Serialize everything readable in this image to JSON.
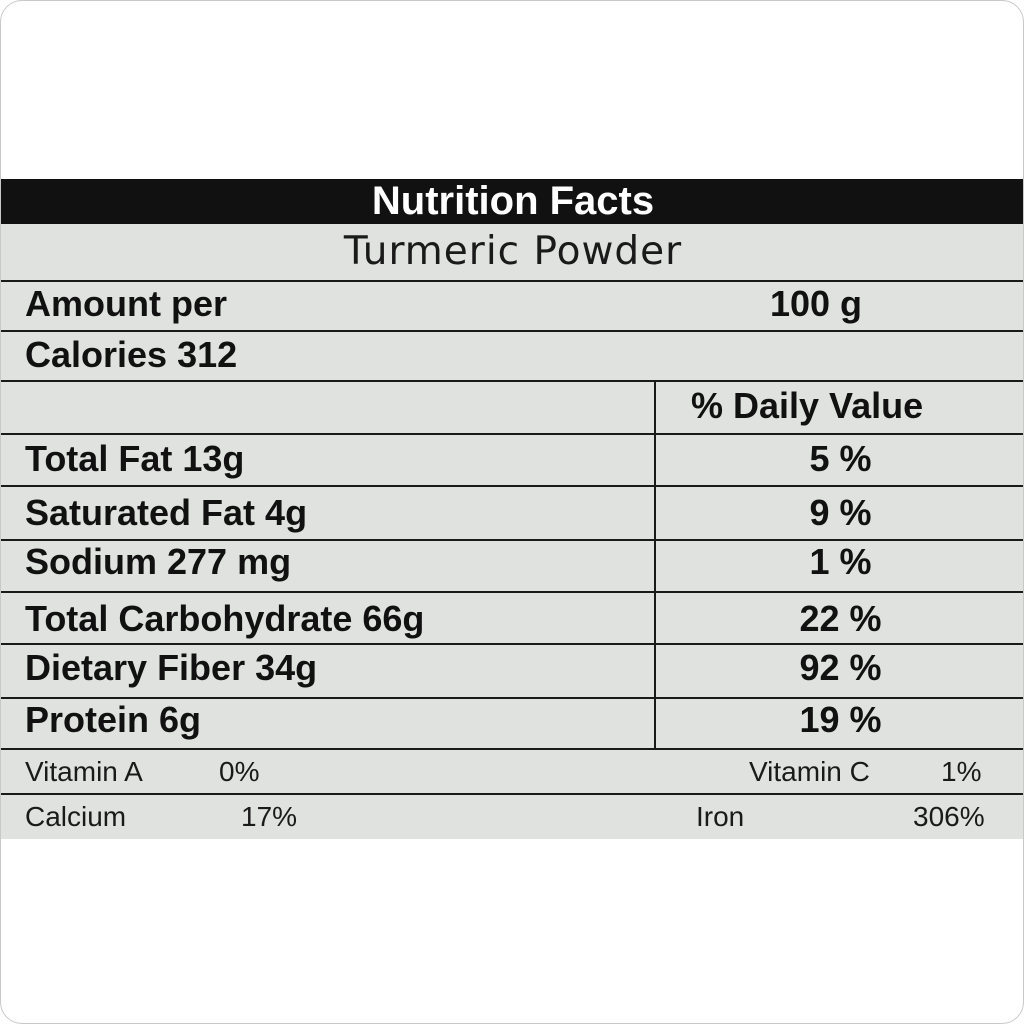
{
  "title": "Nutrition Facts",
  "product": "Turmeric Powder",
  "serving": {
    "label": "Amount per",
    "value": "100 g"
  },
  "calories": "Calories 312",
  "daily_value_header": "% Daily Value",
  "nutrients": [
    {
      "label": "Total Fat 13g",
      "dv": "5 %"
    },
    {
      "label": "Saturated Fat 4g",
      "dv": "9 %"
    },
    {
      "label": "Sodium 277 mg",
      "dv": "1 %"
    },
    {
      "label": "Total Carbohydrate 66g",
      "dv": "22 %"
    },
    {
      "label": "Dietary Fiber 34g",
      "dv": "92 %"
    },
    {
      "label": "Protein 6g",
      "dv": "19 %"
    }
  ],
  "vitamins": [
    {
      "name": "Vitamin A",
      "value": "0%"
    },
    {
      "name": "Vitamin C",
      "value": "1%"
    },
    {
      "name": "Calcium",
      "value": "17%"
    },
    {
      "name": "Iron",
      "value": "306%"
    }
  ]
}
